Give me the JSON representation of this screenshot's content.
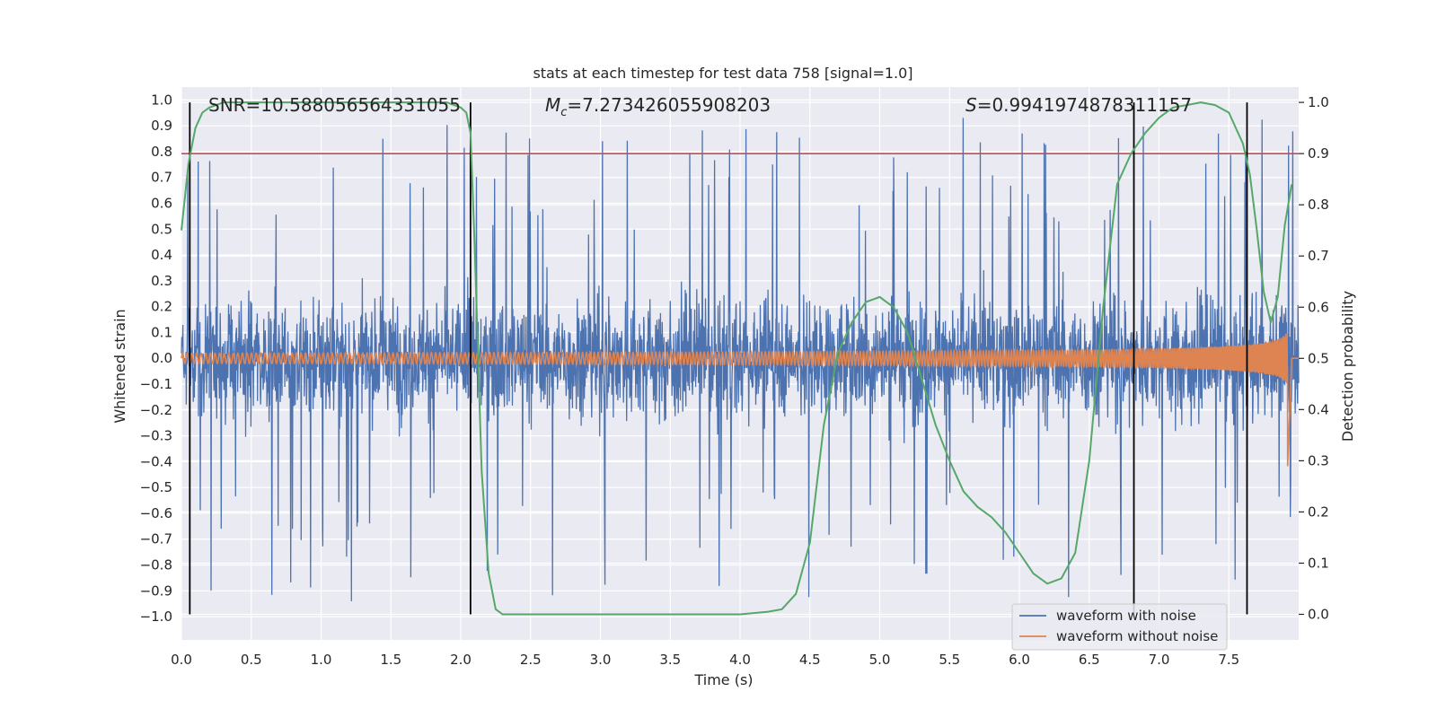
{
  "chart_data": {
    "type": "line",
    "title": "stats at each timestep for test data 758 [signal=1.0]",
    "xlabel": "Time (s)",
    "ylabel": "Whitened strain",
    "y2label": "Detection probability",
    "xlim": [
      0.0,
      8.0
    ],
    "ylim": [
      -1.09,
      1.05
    ],
    "y2lim": [
      -0.05,
      1.03
    ],
    "xticks": [
      "0.0",
      "0.5",
      "1.0",
      "1.5",
      "2.0",
      "2.5",
      "3.0",
      "3.5",
      "4.0",
      "4.5",
      "5.0",
      "5.5",
      "6.0",
      "6.5",
      "7.0",
      "7.5"
    ],
    "yticks": [
      "1.0",
      "0.9",
      "0.8",
      "0.7",
      "0.6",
      "0.5",
      "0.4",
      "0.3",
      "0.2",
      "0.1",
      "0.0",
      "-0.1",
      "-0.2",
      "-0.3",
      "-0.4",
      "-0.5",
      "-0.6",
      "-0.7",
      "-0.8",
      "-0.9",
      "-1.0"
    ],
    "y2ticks": [
      "1.0",
      "0.9",
      "0.8",
      "0.7",
      "0.6",
      "0.5",
      "0.4",
      "0.3",
      "0.2",
      "0.1",
      "0.0"
    ],
    "annotations": {
      "snr": "SNR=10.588056564331055",
      "mc_symbol": "M",
      "mc_sub": "c",
      "mc_value": "=7.273426055908203",
      "s_symbol": "S",
      "s_value": "=0.9941974878311157"
    },
    "threshold": 0.9,
    "threshold_color": "#c44e52",
    "detection_boundaries_s": [
      0.06,
      2.07,
      6.82,
      7.63
    ],
    "series": [
      {
        "name": "waveform with noise",
        "color": "#4c72b0",
        "duration_s": 8.0,
        "approx_abs_peak": 0.95
      },
      {
        "name": "waveform without noise",
        "color": "#dd8452",
        "duration_s": 7.95,
        "start_amplitude": 0.02,
        "peak_amplitude": -0.43
      },
      {
        "name": "detection probability",
        "color": "#55a868",
        "x": [
          0.0,
          0.05,
          0.1,
          0.15,
          0.2,
          0.3,
          0.4,
          0.6,
          1.0,
          1.5,
          1.9,
          2.0,
          2.04,
          2.07,
          2.1,
          2.15,
          2.2,
          2.25,
          2.3,
          3.0,
          3.5,
          4.0,
          4.2,
          4.3,
          4.4,
          4.5,
          4.6,
          4.7,
          4.8,
          4.9,
          5.0,
          5.1,
          5.2,
          5.3,
          5.4,
          5.5,
          5.6,
          5.7,
          5.8,
          5.9,
          6.0,
          6.1,
          6.2,
          6.3,
          6.4,
          6.5,
          6.6,
          6.7,
          6.8,
          6.9,
          7.0,
          7.1,
          7.2,
          7.3,
          7.4,
          7.5,
          7.55,
          7.6,
          7.65,
          7.7,
          7.75,
          7.8,
          7.85,
          7.9,
          7.95
        ],
        "y": [
          0.75,
          0.88,
          0.95,
          0.98,
          0.99,
          1.0,
          1.0,
          1.0,
          1.0,
          1.0,
          1.0,
          0.99,
          0.98,
          0.94,
          0.72,
          0.28,
          0.08,
          0.01,
          0.0,
          0.0,
          0.0,
          0.0,
          0.005,
          0.01,
          0.04,
          0.14,
          0.37,
          0.51,
          0.57,
          0.61,
          0.62,
          0.6,
          0.55,
          0.46,
          0.37,
          0.3,
          0.24,
          0.21,
          0.19,
          0.16,
          0.12,
          0.08,
          0.06,
          0.07,
          0.12,
          0.3,
          0.6,
          0.84,
          0.9,
          0.94,
          0.97,
          0.99,
          0.995,
          1.0,
          0.995,
          0.98,
          0.95,
          0.92,
          0.86,
          0.75,
          0.63,
          0.57,
          0.62,
          0.76,
          0.84
        ]
      }
    ],
    "legend": {
      "placement": "bottom-right",
      "entries": [
        "waveform with noise",
        "waveform without noise"
      ]
    }
  },
  "colors": {
    "plot_bg": "#eaeaf2",
    "grid": "#ffffff",
    "noise": "#4c72b0",
    "clean": "#dd8452",
    "prob": "#55a868",
    "threshold": "#c44e52",
    "boundary": "#000000"
  }
}
